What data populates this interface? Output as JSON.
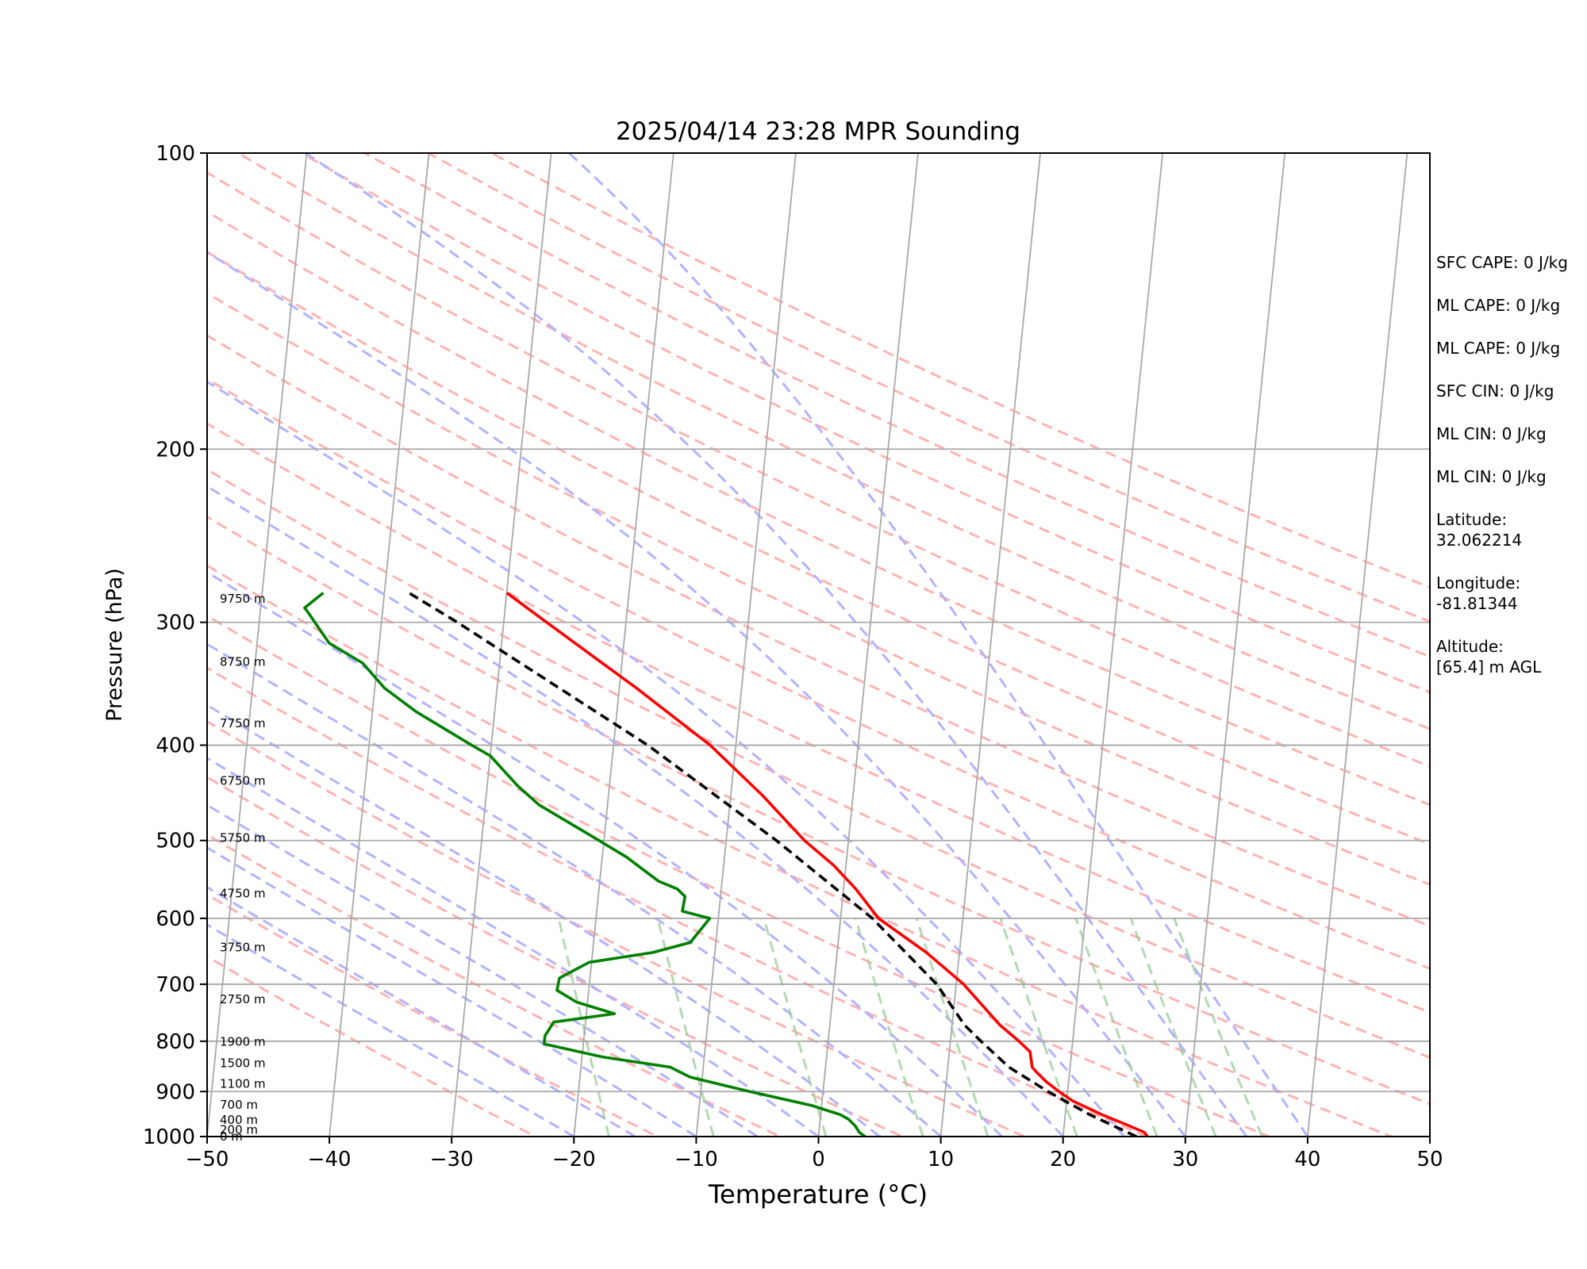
{
  "chart_data": {
    "type": "line",
    "title": "2025/04/14 23:28 MPR Sounding",
    "xlabel": "Temperature (°C)",
    "ylabel": "Pressure (hPa)",
    "xlim": [
      -50,
      50
    ],
    "ylim": [
      1000,
      100
    ],
    "y_scale": "log",
    "skew": "skew-T",
    "grid": true,
    "x_ticks": [
      -50,
      -40,
      -30,
      -20,
      -10,
      0,
      10,
      20,
      30,
      40,
      50
    ],
    "x_tick_labels": [
      "−50",
      "−40",
      "−30",
      "−20",
      "−10",
      "0",
      "10",
      "20",
      "30",
      "40",
      "50"
    ],
    "y_ticks": [
      1000,
      900,
      800,
      700,
      600,
      500,
      400,
      300,
      200,
      100
    ],
    "y_tick_labels": [
      "1000",
      "900",
      "800",
      "700",
      "600",
      "500",
      "400",
      "300",
      "200",
      "100"
    ],
    "height_labels": [
      {
        "label": "0 m",
        "p": 1000
      },
      {
        "label": "200 m",
        "p": 984
      },
      {
        "label": "400 m",
        "p": 962
      },
      {
        "label": "700 m",
        "p": 928
      },
      {
        "label": "1100 m",
        "p": 884
      },
      {
        "label": "1500 m",
        "p": 842
      },
      {
        "label": "1900 m",
        "p": 801
      },
      {
        "label": "2750 m",
        "p": 725
      },
      {
        "label": "3750 m",
        "p": 642
      },
      {
        "label": "4750 m",
        "p": 566
      },
      {
        "label": "5750 m",
        "p": 497
      },
      {
        "label": "6750 m",
        "p": 435
      },
      {
        "label": "7750 m",
        "p": 380
      },
      {
        "label": "8750 m",
        "p": 329
      },
      {
        "label": "9750 m",
        "p": 284
      }
    ],
    "series": [
      {
        "color": "#ff0000",
        "style": "solid",
        "points": [
          {
            "p": 1000,
            "t": 26.9
          },
          {
            "p": 990,
            "t": 26.6
          },
          {
            "p": 975,
            "t": 25.3
          },
          {
            "p": 950,
            "t": 23.0
          },
          {
            "p": 920,
            "t": 20.5
          },
          {
            "p": 900,
            "t": 19.3
          },
          {
            "p": 880,
            "t": 18.2
          },
          {
            "p": 860,
            "t": 17.3
          },
          {
            "p": 850,
            "t": 16.9
          },
          {
            "p": 820,
            "t": 16.6
          },
          {
            "p": 800,
            "t": 15.6
          },
          {
            "p": 770,
            "t": 13.9
          },
          {
            "p": 700,
            "t": 10.6
          },
          {
            "p": 650,
            "t": 7.3
          },
          {
            "p": 600,
            "t": 3.1
          },
          {
            "p": 560,
            "t": 1.0
          },
          {
            "p": 530,
            "t": -1.0
          },
          {
            "p": 500,
            "t": -3.6
          },
          {
            "p": 450,
            "t": -7.4
          },
          {
            "p": 400,
            "t": -12.1
          },
          {
            "p": 350,
            "t": -18.6
          },
          {
            "p": 300,
            "t": -26.5
          },
          {
            "p": 280,
            "t": -30.0
          }
        ]
      },
      {
        "color": "#008000",
        "style": "solid",
        "points": [
          {
            "p": 1000,
            "t": 3.8
          },
          {
            "p": 990,
            "t": 3.3
          },
          {
            "p": 975,
            "t": 2.9
          },
          {
            "p": 960,
            "t": 2.3
          },
          {
            "p": 950,
            "t": 1.6
          },
          {
            "p": 930,
            "t": -0.8
          },
          {
            "p": 900,
            "t": -6.0
          },
          {
            "p": 870,
            "t": -11.0
          },
          {
            "p": 850,
            "t": -12.7
          },
          {
            "p": 830,
            "t": -18.3
          },
          {
            "p": 805,
            "t": -23.2
          },
          {
            "p": 790,
            "t": -23.2
          },
          {
            "p": 765,
            "t": -22.6
          },
          {
            "p": 750,
            "t": -17.7
          },
          {
            "p": 730,
            "t": -20.9
          },
          {
            "p": 710,
            "t": -22.6
          },
          {
            "p": 690,
            "t": -22.5
          },
          {
            "p": 665,
            "t": -20.2
          },
          {
            "p": 650,
            "t": -15.1
          },
          {
            "p": 635,
            "t": -12.1
          },
          {
            "p": 600,
            "t": -10.7
          },
          {
            "p": 590,
            "t": -13.0
          },
          {
            "p": 570,
            "t": -12.9
          },
          {
            "p": 560,
            "t": -13.6
          },
          {
            "p": 550,
            "t": -15.2
          },
          {
            "p": 520,
            "t": -18.0
          },
          {
            "p": 500,
            "t": -20.4
          },
          {
            "p": 460,
            "t": -25.6
          },
          {
            "p": 440,
            "t": -27.5
          },
          {
            "p": 410,
            "t": -30.0
          },
          {
            "p": 400,
            "t": -31.6
          },
          {
            "p": 370,
            "t": -36.4
          },
          {
            "p": 350,
            "t": -39.2
          },
          {
            "p": 330,
            "t": -41.2
          },
          {
            "p": 315,
            "t": -44.1
          },
          {
            "p": 305,
            "t": -45.0
          },
          {
            "p": 295,
            "t": -45.9
          },
          {
            "p": 290,
            "t": -46.4
          },
          {
            "p": 280,
            "t": -45.0
          }
        ]
      },
      {
        "color": "#000000",
        "style": "dashed",
        "points": [
          {
            "p": 1000,
            "t": 26.0
          },
          {
            "p": 950,
            "t": 22.0
          },
          {
            "p": 900,
            "t": 18.4
          },
          {
            "p": 850,
            "t": 15.0
          },
          {
            "p": 800,
            "t": 12.5
          },
          {
            "p": 770,
            "t": 11.0
          },
          {
            "p": 750,
            "t": 10.3
          },
          {
            "p": 700,
            "t": 8.4
          },
          {
            "p": 600,
            "t": 2.6
          },
          {
            "p": 500,
            "t": -5.9
          },
          {
            "p": 400,
            "t": -17.2
          },
          {
            "p": 300,
            "t": -33.8
          },
          {
            "p": 280,
            "t": -38.0
          }
        ]
      }
    ],
    "reference_lines": {
      "isotherm_color": "#a9a9a9",
      "dry_adiabat_color": "#ffb3b3",
      "moist_adiabat_color": "#b3b3ff",
      "mixing_ratio_color": "#99cc99",
      "isobar_color": "#a9a9a9"
    }
  },
  "info": {
    "sfc_cape": "SFC CAPE: 0 J/kg",
    "ml_cape_1": "ML CAPE: 0 J/kg",
    "ml_cape_2": "ML CAPE: 0 J/kg",
    "sfc_cin": "SFC CIN: 0 J/kg",
    "ml_cin_1": "ML CIN: 0 J/kg",
    "ml_cin_2": "ML CIN: 0 J/kg",
    "latitude_label": "Latitude:",
    "latitude_value": "32.062214",
    "longitude_label": "Longitude:",
    "longitude_value": "-81.81344",
    "altitude_label": "Altitude:",
    "altitude_value": "[65.4] m AGL"
  }
}
